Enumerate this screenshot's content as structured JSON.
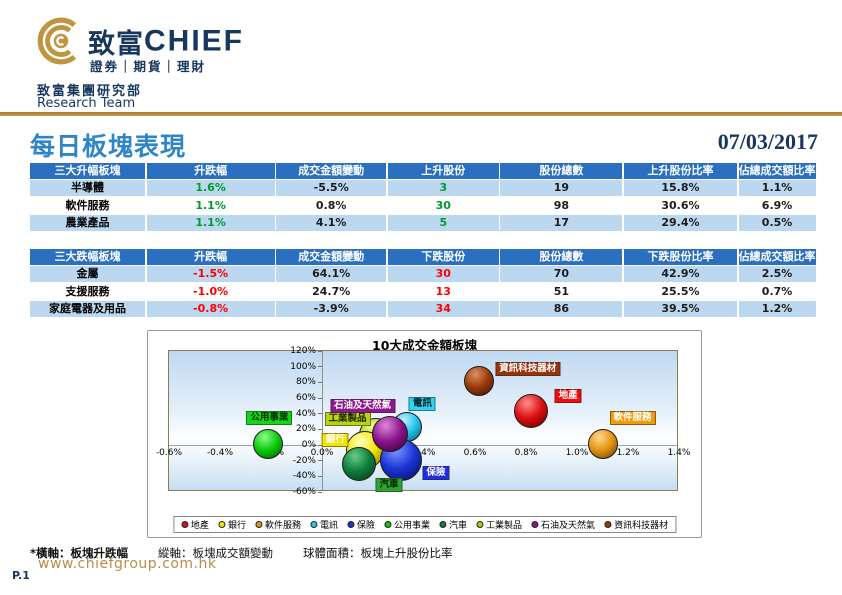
{
  "brand": {
    "logo_cjk": "致富",
    "logo_latin": "CHIEF",
    "tagline": "證券｜期貨｜理財",
    "dept": "致富集團研究部",
    "dept_en": "Research Team",
    "navy": "#17375E",
    "gold": "#C0953F"
  },
  "page": {
    "title": "每日板塊表現",
    "date": "07/03/2017"
  },
  "tables": [
    {
      "id": "top-gainers",
      "headers": [
        "三大升幅板塊",
        "升跌幅",
        "成交金額變動",
        "上升股份",
        "股份總數",
        "上升股份比率",
        "佔總成交額比率"
      ],
      "rows": [
        [
          "半導體",
          "1.6%",
          "-5.5%",
          "3",
          "19",
          "15.8%",
          "1.1%"
        ],
        [
          "軟件服務",
          "1.1%",
          "0.8%",
          "30",
          "98",
          "30.6%",
          "6.9%"
        ],
        [
          "農業產品",
          "1.1%",
          "4.1%",
          "5",
          "17",
          "29.4%",
          "0.5%"
        ]
      ],
      "accent_color": "#009933",
      "accent_cols": [
        1,
        3
      ]
    },
    {
      "id": "top-losers",
      "headers": [
        "三大跌幅板塊",
        "升跌幅",
        "成交金額變動",
        "下跌股份",
        "股份總數",
        "下跌股份比率",
        "佔總成交額比率"
      ],
      "rows": [
        [
          "金屬",
          "-1.5%",
          "64.1%",
          "30",
          "70",
          "42.9%",
          "2.5%"
        ],
        [
          "支援服務",
          "-1.0%",
          "24.7%",
          "13",
          "51",
          "25.5%",
          "0.7%"
        ],
        [
          "家庭電器及用品",
          "-0.8%",
          "-3.9%",
          "34",
          "86",
          "39.5%",
          "1.2%"
        ]
      ],
      "accent_color": "#FF0000",
      "accent_cols": [
        1,
        3
      ]
    }
  ],
  "chart_data": {
    "type": "scatter",
    "title": "10大成交金額板塊",
    "xlabel": "板塊升跌幅",
    "ylabel": "板塊成交額變動",
    "bubble_size_meaning": "板塊上升股份比率",
    "x_axis": {
      "min": -0.6,
      "max": 1.4,
      "step": 0.2,
      "ticks": [
        "-0.6%",
        "-0.4%",
        "-0.2%",
        "0.0%",
        "0.2%",
        "0.4%",
        "0.6%",
        "0.8%",
        "1.0%",
        "1.2%",
        "1.4%"
      ]
    },
    "y_axis": {
      "min": -60,
      "max": 120,
      "step": 20,
      "ticks": [
        "120%",
        "100%",
        "80%",
        "60%",
        "40%",
        "20%",
        "0%",
        "-20%",
        "-40%",
        "-60%"
      ]
    },
    "series": [
      {
        "name": "公用事業",
        "x": -0.21,
        "y": 1,
        "r": 15,
        "z": 1,
        "hi": "#8CFC8C",
        "base": "#0ACC0A",
        "dark": "#055E05",
        "label_bg": "#12D912",
        "label_fg": "#052B05",
        "dx": 1,
        "dy": -26
      },
      {
        "name": "電訊",
        "x": 0.335,
        "y": 23,
        "r": 15,
        "z": 1,
        "hi": "#BDF3FF",
        "base": "#25C5EA",
        "dark": "#0A5E80",
        "label_bg": "#2FD3F2",
        "label_fg": "#03222C",
        "dx": 15,
        "dy": -23
      },
      {
        "name": "工業製品",
        "x": 0.21,
        "y": 13,
        "r": 17,
        "z": 2,
        "hi": "#EEFF99",
        "base": "#AFCC12",
        "dark": "#4D5A00",
        "label_bg": "#B8D411",
        "label_fg": "#1E2400",
        "dx": -28,
        "dy": -16
      },
      {
        "name": "銀行",
        "x": 0.17,
        "y": -6,
        "r": 19,
        "z": 3,
        "hi": "#FFFFC2",
        "base": "#F5E500",
        "dark": "#7A7000",
        "label_bg": "#F2E400",
        "label_fg": "#FFFFFF",
        "dx": -30,
        "dy": -10
      },
      {
        "name": "汽車",
        "x": 0.145,
        "y": -24,
        "r": 17,
        "z": 4,
        "hi": "#66CC88",
        "base": "#0F7E3A",
        "dark": "#033A18",
        "label_bg": "#2FA32F",
        "label_fg": "#0B2500",
        "dx": 30,
        "dy": 21
      },
      {
        "name": "保險",
        "x": 0.31,
        "y": -19,
        "r": 21,
        "z": 5,
        "hi": "#7C96FF",
        "base": "#1A35D6",
        "dark": "#050F55",
        "label_bg": "#1F2FE8",
        "label_fg": "#FFFFFF",
        "dx": 35,
        "dy": 13
      },
      {
        "name": "石油及天然氣",
        "x": 0.265,
        "y": 14,
        "r": 18,
        "z": 6,
        "hi": "#DD88DD",
        "base": "#8A148A",
        "dark": "#350335",
        "label_bg": "#8E178E",
        "label_fg": "#FFFFFF",
        "dx": -27,
        "dy": -28
      },
      {
        "name": "資訊科技器材",
        "x": 0.615,
        "y": 82,
        "r": 15,
        "z": 1,
        "hi": "#DD9060",
        "base": "#9A3A0E",
        "dark": "#3E1404",
        "label_bg": "#99330A",
        "label_fg": "#FFFFFF",
        "dx": 49,
        "dy": -12
      },
      {
        "name": "地產",
        "x": 0.82,
        "y": 43,
        "r": 17,
        "z": 1,
        "hi": "#FF9090",
        "base": "#DD0E0E",
        "dark": "#5E0303",
        "label_bg": "#F50A0A",
        "label_fg": "#FFFFFF",
        "dx": 37,
        "dy": -15
      },
      {
        "name": "軟件服務",
        "x": 1.1,
        "y": 1,
        "r": 15,
        "z": 1,
        "hi": "#FFD98E",
        "base": "#E29512",
        "dark": "#6E4403",
        "label_bg": "#F29B07",
        "label_fg": "#FFFFFF",
        "dx": 30,
        "dy": -26
      }
    ],
    "legend": [
      {
        "label": "地產",
        "color": "#DD0E0E"
      },
      {
        "label": "銀行",
        "color": "#F5E500"
      },
      {
        "label": "軟件服務",
        "color": "#E29512"
      },
      {
        "label": "電訊",
        "color": "#25C5EA"
      },
      {
        "label": "保險",
        "color": "#1A35D6"
      },
      {
        "label": "公用事業",
        "color": "#0ACC0A"
      },
      {
        "label": "汽車",
        "color": "#0F7E3A"
      },
      {
        "label": "工業製品",
        "color": "#AFCC12"
      },
      {
        "label": "石油及天然氣",
        "color": "#8A148A"
      },
      {
        "label": "資訊科技器材",
        "color": "#9A3A0E"
      }
    ],
    "legend_position": "bottom"
  },
  "footnote": {
    "segments": [
      "*橫軸：板塊升跌幅",
      "縱軸：板塊成交額變動",
      "球體面積：板塊上升股份比率"
    ]
  },
  "footer": {
    "url": "www.chiefgroup.com.hk",
    "page_number": "P.1"
  }
}
